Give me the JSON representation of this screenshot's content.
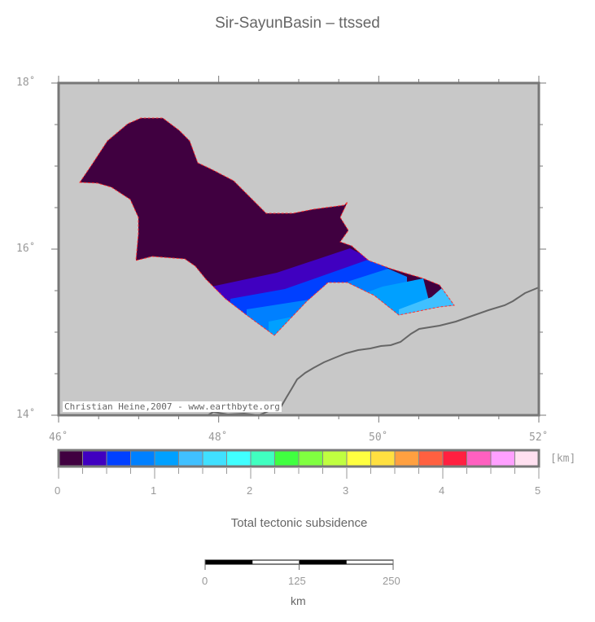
{
  "title": "Sir-SayunBasin – ttssed",
  "map": {
    "lon_labels": [
      "46˚",
      "48˚",
      "50˚",
      "52˚"
    ],
    "lat_labels": [
      "14˚",
      "16˚",
      "18˚"
    ],
    "lon_range": [
      46,
      52
    ],
    "lat_range": [
      14,
      18
    ],
    "background_color": "#c8c8c8",
    "credit": "Christian Heine,2007 - www.earthbyte.org"
  },
  "colorbar": {
    "colors": [
      "#400040",
      "#4000c0",
      "#0040ff",
      "#0080ff",
      "#00a0ff",
      "#40c0ff",
      "#40e0ff",
      "#40ffff",
      "#40ffc0",
      "#40ff40",
      "#80ff40",
      "#c0ff40",
      "#ffff40",
      "#ffe040",
      "#ffa040",
      "#ff6040",
      "#ff2040",
      "#ff60c0",
      "#ffa0ff",
      "#ffe0f0"
    ],
    "tick_labels": [
      "0",
      "1",
      "2",
      "3",
      "4",
      "5"
    ],
    "unit": "[km]",
    "label": "Total tectonic subsidence"
  },
  "scalebar": {
    "tick_labels": [
      "0",
      "125",
      "250"
    ],
    "unit": "km"
  }
}
